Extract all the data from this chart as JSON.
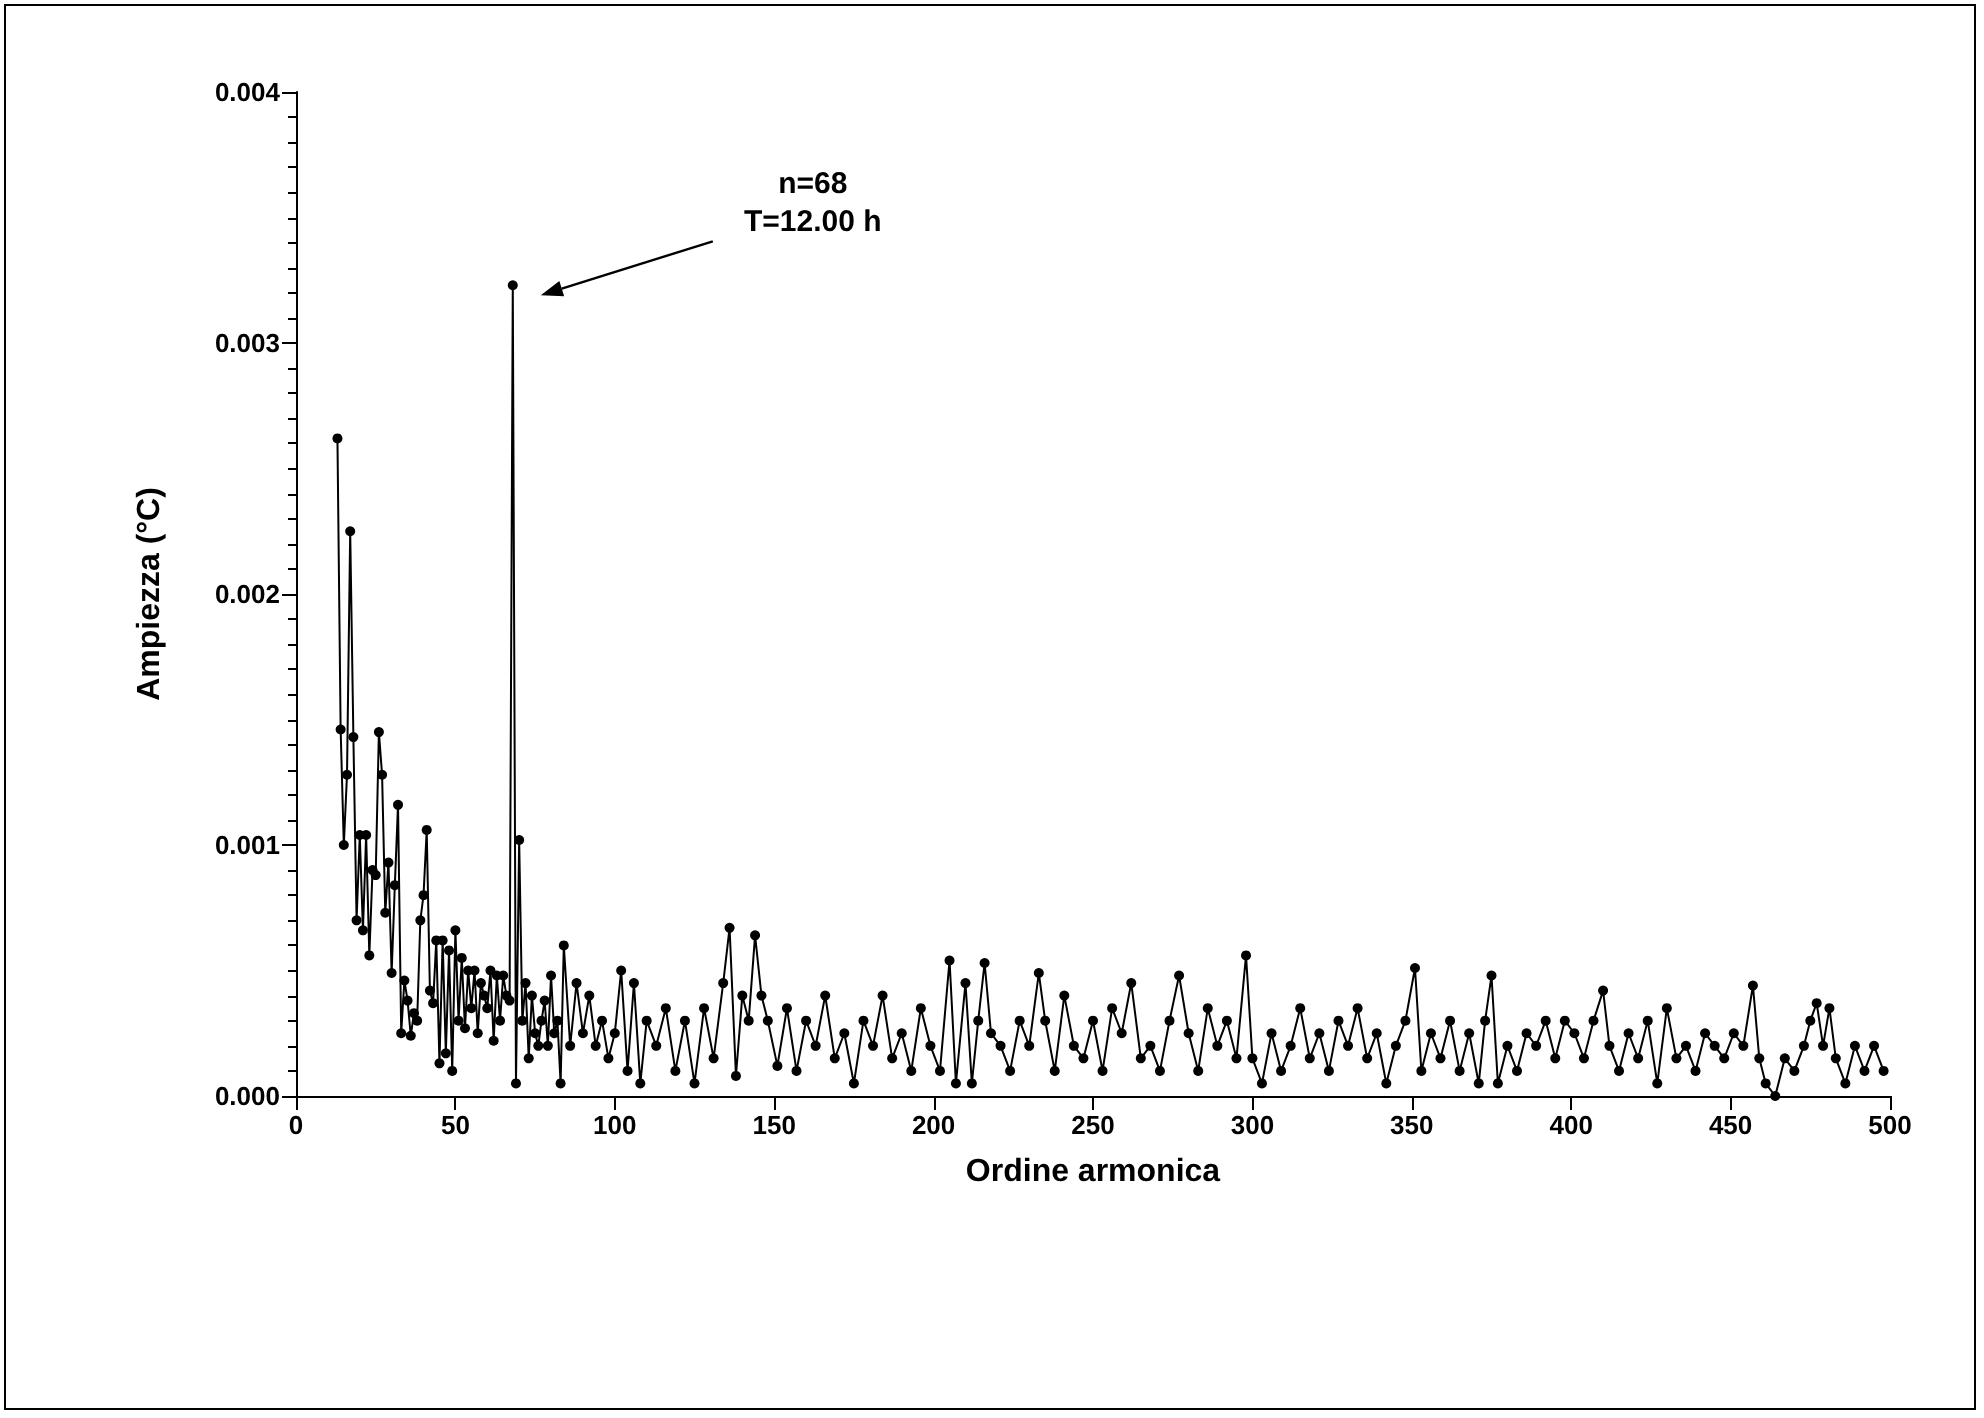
{
  "chart_data": {
    "type": "line",
    "xlabel": "Ordine armonica",
    "ylabel": "Ampiezza (°C)",
    "marker": "circle",
    "line_style": "solid",
    "grid": false,
    "xlim": [
      0,
      500
    ],
    "xticks": [
      0,
      50,
      100,
      150,
      200,
      250,
      300,
      350,
      400,
      450,
      500
    ],
    "ylim": [
      0,
      0.004
    ],
    "yticks": [
      {
        "value": 0,
        "label": "0.000"
      },
      {
        "value": 0.001,
        "label": "0.001"
      },
      {
        "value": 0.002,
        "label": "0.002"
      },
      {
        "value": 0.003,
        "label": "0.003"
      },
      {
        "value": 0.004,
        "label": "0.004"
      }
    ],
    "annotations": [
      "n=68\nT=12.00 h"
    ],
    "series": [
      {
        "color": "#000000",
        "x": [
          13,
          14,
          15,
          16,
          17,
          18,
          19,
          20,
          21,
          22,
          23,
          24,
          25,
          26,
          27,
          28,
          29,
          30,
          31,
          32,
          33,
          34,
          35,
          36,
          37,
          38,
          39,
          40,
          41,
          42,
          43,
          44,
          45,
          46,
          47,
          48,
          49,
          50,
          51,
          52,
          53,
          54,
          55,
          56,
          57,
          58,
          59,
          60,
          61,
          62,
          63,
          64,
          65,
          66,
          67,
          68,
          69,
          70,
          71,
          72,
          73,
          74,
          75,
          76,
          77,
          78,
          79,
          80,
          81,
          82,
          83,
          84,
          86,
          88,
          90,
          92,
          94,
          96,
          98,
          100,
          102,
          104,
          106,
          108,
          110,
          113,
          116,
          119,
          122,
          125,
          128,
          131,
          134,
          136,
          138,
          140,
          142,
          144,
          146,
          148,
          151,
          154,
          157,
          160,
          163,
          166,
          169,
          172,
          175,
          178,
          181,
          184,
          187,
          190,
          193,
          196,
          199,
          202,
          205,
          207,
          210,
          212,
          214,
          216,
          218,
          221,
          224,
          227,
          230,
          233,
          235,
          238,
          241,
          244,
          247,
          250,
          253,
          256,
          259,
          262,
          265,
          268,
          271,
          274,
          277,
          280,
          283,
          286,
          289,
          292,
          295,
          298,
          300,
          303,
          306,
          309,
          312,
          315,
          318,
          321,
          324,
          327,
          330,
          333,
          336,
          339,
          342,
          345,
          348,
          351,
          353,
          356,
          359,
          362,
          365,
          368,
          371,
          373,
          375,
          377,
          380,
          383,
          386,
          389,
          392,
          395,
          398,
          401,
          404,
          407,
          410,
          412,
          415,
          418,
          421,
          424,
          427,
          430,
          433,
          436,
          439,
          442,
          445,
          448,
          451,
          454,
          457,
          459,
          461,
          464,
          467,
          470,
          473,
          475,
          477,
          479,
          481,
          483,
          486,
          489,
          492,
          495,
          498
        ],
        "values": [
          0.00262,
          0.00146,
          0.001,
          0.00128,
          0.00225,
          0.00143,
          0.0007,
          0.00104,
          0.00066,
          0.00104,
          0.00056,
          0.0009,
          0.00088,
          0.00145,
          0.00128,
          0.00073,
          0.00093,
          0.00049,
          0.00084,
          0.00116,
          0.00025,
          0.00046,
          0.00038,
          0.00024,
          0.00033,
          0.0003,
          0.0007,
          0.0008,
          0.00106,
          0.00042,
          0.00037,
          0.00062,
          0.00013,
          0.00062,
          0.00017,
          0.00058,
          0.0001,
          0.00066,
          0.0003,
          0.00055,
          0.00027,
          0.0005,
          0.00035,
          0.0005,
          0.00025,
          0.00045,
          0.0004,
          0.00035,
          0.0005,
          0.00022,
          0.00048,
          0.0003,
          0.00048,
          0.0004,
          0.00038,
          0.00323,
          5e-05,
          0.00102,
          0.0003,
          0.00045,
          0.00015,
          0.0004,
          0.00025,
          0.0002,
          0.0003,
          0.00038,
          0.0002,
          0.00048,
          0.00025,
          0.0003,
          5e-05,
          0.0006,
          0.0002,
          0.00045,
          0.00025,
          0.0004,
          0.0002,
          0.0003,
          0.00015,
          0.00025,
          0.0005,
          0.0001,
          0.00045,
          5e-05,
          0.0003,
          0.0002,
          0.00035,
          0.0001,
          0.0003,
          5e-05,
          0.00035,
          0.00015,
          0.00045,
          0.00067,
          8e-05,
          0.0004,
          0.0003,
          0.00064,
          0.0004,
          0.0003,
          0.00012,
          0.00035,
          0.0001,
          0.0003,
          0.0002,
          0.0004,
          0.00015,
          0.00025,
          5e-05,
          0.0003,
          0.0002,
          0.0004,
          0.00015,
          0.00025,
          0.0001,
          0.00035,
          0.0002,
          0.0001,
          0.00054,
          5e-05,
          0.00045,
          5e-05,
          0.0003,
          0.00053,
          0.00025,
          0.0002,
          0.0001,
          0.0003,
          0.0002,
          0.00049,
          0.0003,
          0.0001,
          0.0004,
          0.0002,
          0.00015,
          0.0003,
          0.0001,
          0.00035,
          0.00025,
          0.00045,
          0.00015,
          0.0002,
          0.0001,
          0.0003,
          0.00048,
          0.00025,
          0.0001,
          0.00035,
          0.0002,
          0.0003,
          0.00015,
          0.00056,
          0.00015,
          5e-05,
          0.00025,
          0.0001,
          0.0002,
          0.00035,
          0.00015,
          0.00025,
          0.0001,
          0.0003,
          0.0002,
          0.00035,
          0.00015,
          0.00025,
          5e-05,
          0.0002,
          0.0003,
          0.00051,
          0.0001,
          0.00025,
          0.00015,
          0.0003,
          0.0001,
          0.00025,
          5e-05,
          0.0003,
          0.00048,
          5e-05,
          0.0002,
          0.0001,
          0.00025,
          0.0002,
          0.0003,
          0.00015,
          0.0003,
          0.00025,
          0.00015,
          0.0003,
          0.00042,
          0.0002,
          0.0001,
          0.00025,
          0.00015,
          0.0003,
          5e-05,
          0.00035,
          0.00015,
          0.0002,
          0.0001,
          0.00025,
          0.0002,
          0.00015,
          0.00025,
          0.0002,
          0.00044,
          0.00015,
          5e-05,
          0.0,
          0.00015,
          0.0001,
          0.0002,
          0.0003,
          0.00037,
          0.0002,
          0.00035,
          0.00015,
          5e-05,
          0.0002,
          0.0001,
          0.0002,
          0.0001
        ]
      }
    ]
  }
}
